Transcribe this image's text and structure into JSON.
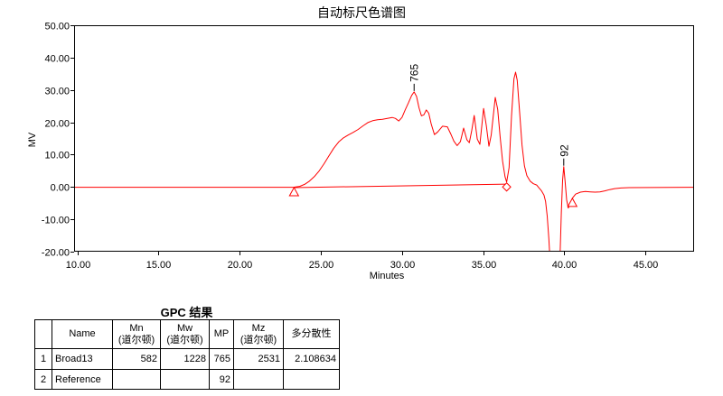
{
  "chart_data": {
    "type": "line",
    "title": "自动标尺色谱图",
    "xlabel": "Minutes",
    "ylabel": "MV",
    "xlim": [
      9.8,
      48.0
    ],
    "ylim": [
      -20,
      50
    ],
    "xtick_labels": [
      "10.00",
      "15.00",
      "20.00",
      "25.00",
      "30.00",
      "35.00",
      "40.00",
      "45.00"
    ],
    "ytick_labels": [
      "50.00",
      "40.00",
      "30.00",
      "20.00",
      "10.00",
      "0.00",
      "-10.00",
      "-20.00"
    ],
    "grid": false,
    "line_color": "#ff0000",
    "axis_color": "#000000",
    "series": [
      {
        "x": [
          9.8,
          23.3,
          23.7,
          24.0,
          24.3,
          24.6,
          24.9,
          25.2,
          25.5,
          25.8,
          26.1,
          26.4,
          26.7,
          27.0,
          27.3,
          27.6,
          27.9,
          28.2,
          28.5,
          28.8,
          29.1,
          29.4,
          29.6,
          29.8,
          30.0,
          30.2,
          30.4,
          30.6,
          30.75,
          30.9,
          31.05,
          31.2,
          31.35,
          31.5,
          31.65,
          31.8,
          32.0,
          32.2,
          32.5,
          32.8,
          33.0,
          33.2,
          33.4,
          33.6,
          33.8,
          34.0,
          34.15,
          34.3,
          34.45,
          34.64,
          34.8,
          35.03,
          35.2,
          35.36,
          35.5,
          35.75,
          35.9,
          36.05,
          36.2,
          36.35,
          36.45,
          36.6,
          36.75,
          36.9,
          37.0,
          37.1,
          37.25,
          37.4,
          37.55,
          37.7,
          37.9,
          38.1,
          38.3,
          38.45,
          38.6,
          38.75,
          38.85,
          38.95,
          39.05,
          39.15,
          39.72,
          39.82,
          39.9,
          39.97,
          40.05,
          40.15,
          40.25,
          40.35,
          40.5,
          40.7,
          41.0,
          41.3,
          41.6,
          41.9,
          42.2,
          42.5,
          42.8,
          43.1,
          43.5,
          44.0,
          48.0
        ],
        "y": [
          -0.1,
          -0.1,
          0.2,
          0.8,
          1.8,
          3.2,
          5.0,
          7.2,
          9.6,
          12.0,
          13.9,
          15.2,
          16.1,
          16.9,
          17.8,
          18.9,
          19.9,
          20.5,
          20.8,
          20.9,
          21.2,
          21.5,
          21.2,
          20.4,
          21.5,
          23.8,
          26.0,
          28.3,
          29.4,
          28.0,
          24.5,
          22.0,
          22.3,
          23.8,
          22.8,
          19.5,
          16.2,
          17.0,
          18.8,
          18.6,
          16.5,
          14.2,
          12.8,
          14.0,
          18.2,
          14.6,
          13.7,
          17.5,
          22.1,
          14.8,
          13.2,
          24.3,
          19.0,
          12.6,
          16.0,
          27.7,
          24.0,
          15.5,
          8.0,
          3.2,
          1.5,
          6.0,
          22.0,
          33.5,
          35.5,
          33.0,
          23.0,
          13.0,
          6.5,
          3.5,
          1.8,
          1.0,
          0.6,
          -0.3,
          -1.2,
          -2.5,
          -4.5,
          -9.0,
          -16.0,
          -25.0,
          -25.0,
          -8.0,
          2.0,
          6.3,
          2.0,
          -4.0,
          -6.5,
          -5.5,
          -3.5,
          -2.2,
          -1.6,
          -1.4,
          -1.5,
          -1.6,
          -1.5,
          -1.2,
          -0.8,
          -0.5,
          -0.3,
          -0.2,
          -0.1
        ]
      }
    ],
    "integration_baseline": {
      "x": [
        23.35,
        36.45
      ],
      "y": [
        -0.2,
        0.9
      ]
    },
    "peak_labels": [
      {
        "text": "765",
        "x": 30.75,
        "y": 29.4
      },
      {
        "text": "92",
        "x": 39.97,
        "y": 6.3
      }
    ],
    "triangle_markers": [
      {
        "x": 23.35,
        "y": -0.2
      },
      {
        "x": 40.5,
        "y": -3.5
      }
    ],
    "diamond_markers": [
      {
        "x": 36.45,
        "y": 0.0
      }
    ]
  },
  "results": {
    "title": "GPC 结果",
    "headers": [
      {
        "label": ""
      },
      {
        "label": "Name"
      },
      {
        "label": "Mn",
        "unit": "(道尔顿)"
      },
      {
        "label": "Mw",
        "unit": "(道尔顿)"
      },
      {
        "label": "MP"
      },
      {
        "label": "Mz",
        "unit": "(道尔顿)"
      },
      {
        "label": "多分散性"
      }
    ],
    "rows": [
      [
        "1",
        "Broad13",
        "582",
        "1228",
        "765",
        "2531",
        "2.108634"
      ],
      [
        "2",
        "Reference",
        "",
        "",
        "92",
        "",
        ""
      ]
    ]
  }
}
